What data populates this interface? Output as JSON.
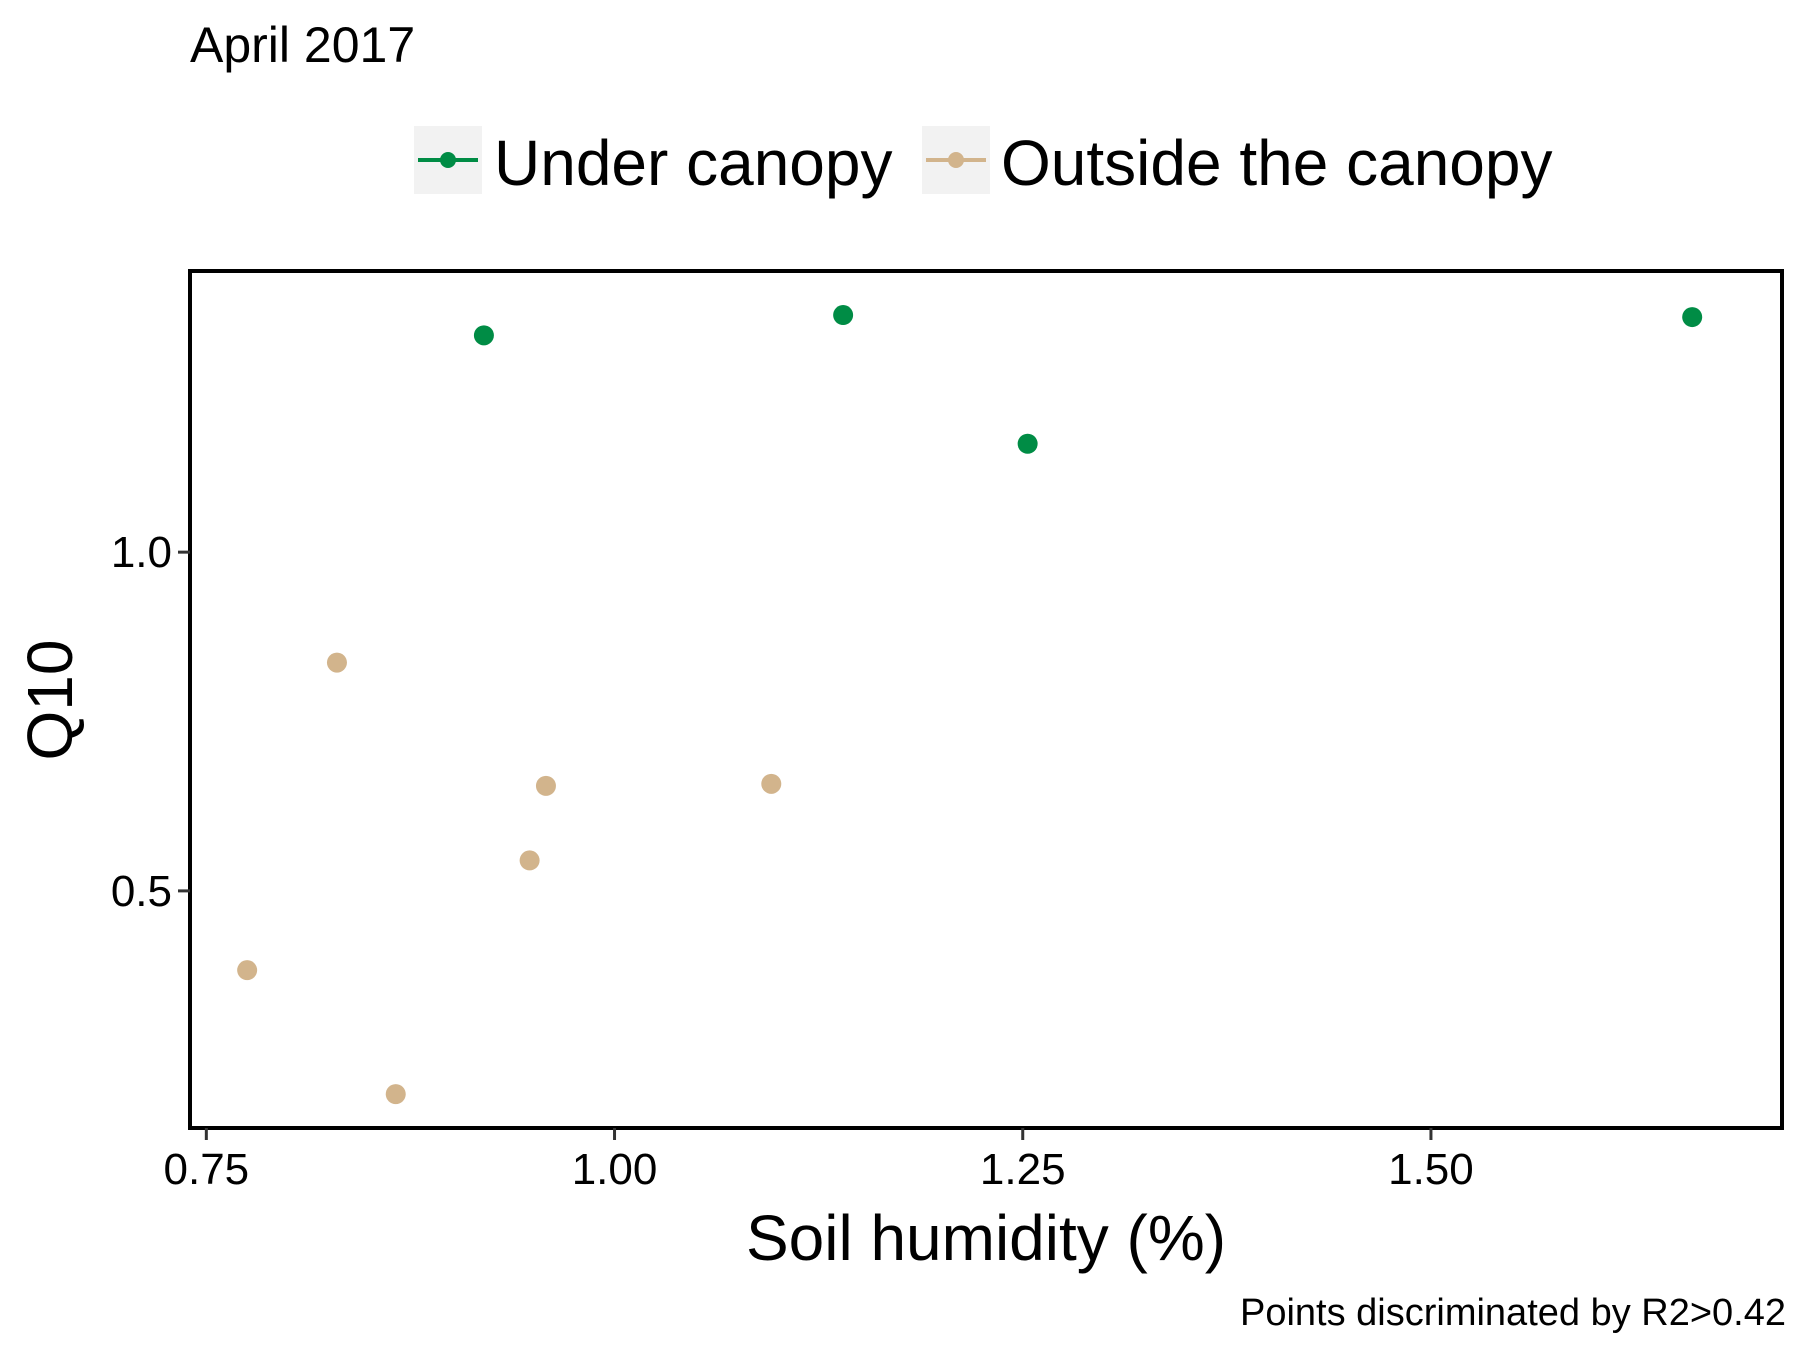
{
  "chart_data": {
    "type": "scatter",
    "title": "April 2017",
    "xlabel": "Soil humidity (%)",
    "ylabel": "Q10",
    "caption": "Points discriminated by R2>0.42",
    "xlim": [
      0.74,
      1.715
    ],
    "ylim": [
      0.15,
      1.415
    ],
    "xticks": [
      0.75,
      1.0,
      1.25,
      1.5
    ],
    "xtick_labels": [
      "0.75",
      "1.00",
      "1.25",
      "1.50"
    ],
    "yticks": [
      0.5,
      1.0
    ],
    "ytick_labels": [
      "0.5",
      "1.0"
    ],
    "grid": false,
    "legend_position": "top",
    "series": [
      {
        "name": "Under canopy",
        "color": "#008C45",
        "points": [
          {
            "x": 0.92,
            "y": 1.32
          },
          {
            "x": 1.14,
            "y": 1.35
          },
          {
            "x": 1.253,
            "y": 1.16
          },
          {
            "x": 1.66,
            "y": 1.347
          }
        ]
      },
      {
        "name": "Outside the canopy",
        "color": "#D2B48C",
        "points": [
          {
            "x": 0.775,
            "y": 0.383
          },
          {
            "x": 0.83,
            "y": 0.837
          },
          {
            "x": 0.866,
            "y": 0.2
          },
          {
            "x": 0.948,
            "y": 0.545
          },
          {
            "x": 0.958,
            "y": 0.655
          },
          {
            "x": 1.096,
            "y": 0.658
          }
        ]
      }
    ]
  }
}
